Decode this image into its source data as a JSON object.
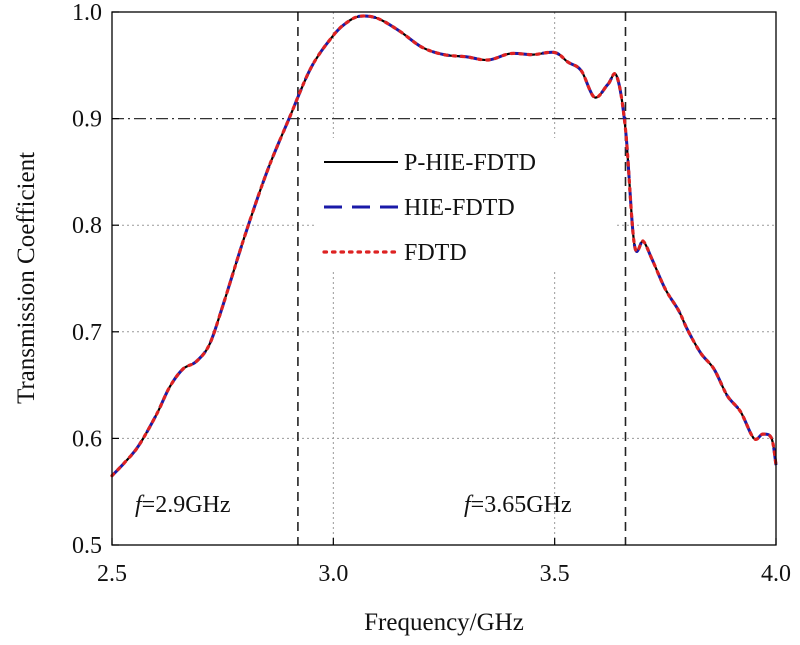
{
  "chart_data": {
    "type": "line",
    "xlabel": "Frequency/GHz",
    "ylabel": "Transmission Coefficient",
    "xlim": [
      2.5,
      4.0
    ],
    "ylim": [
      0.5,
      1.0
    ],
    "xticks": [
      2.5,
      3.0,
      3.5,
      4.0
    ],
    "xtick_labels": [
      "2.5",
      "3.0",
      "3.5",
      "4.0"
    ],
    "yticks": [
      0.5,
      0.6,
      0.7,
      0.8,
      0.9,
      1.0
    ],
    "ytick_labels": [
      "0.5",
      "0.6",
      "0.7",
      "0.8",
      "0.9",
      "1.0"
    ],
    "grid": true,
    "reference_lines": {
      "horizontal": [
        0.9
      ],
      "vertical": [
        2.92,
        3.66
      ]
    },
    "annotations": [
      {
        "italic": "f",
        "text": "=2.9GHz",
        "x": 2.8
      },
      {
        "italic": "f",
        "text": "=3.65GHz",
        "x": 3.51
      }
    ],
    "legend_position": "center-left",
    "series": [
      {
        "name": "P-HIE-FDTD",
        "color": "#000000",
        "style": "solid"
      },
      {
        "name": "HIE-FDTD",
        "color": "#1a1aa8",
        "style": "dashed"
      },
      {
        "name": "FDTD",
        "color": "#dd2222",
        "style": "dotted"
      }
    ],
    "x": [
      2.5,
      2.53,
      2.56,
      2.6,
      2.63,
      2.66,
      2.69,
      2.72,
      2.75,
      2.8,
      2.85,
      2.9,
      2.95,
      3.0,
      3.03,
      3.06,
      3.1,
      3.15,
      3.2,
      3.25,
      3.3,
      3.35,
      3.4,
      3.45,
      3.5,
      3.53,
      3.56,
      3.59,
      3.62,
      3.64,
      3.66,
      3.68,
      3.7,
      3.72,
      3.75,
      3.78,
      3.8,
      3.83,
      3.86,
      3.89,
      3.92,
      3.95,
      3.97,
      3.99,
      4.0
    ],
    "values": [
      0.565,
      0.578,
      0.593,
      0.622,
      0.648,
      0.665,
      0.672,
      0.688,
      0.724,
      0.79,
      0.85,
      0.9,
      0.948,
      0.978,
      0.99,
      0.996,
      0.994,
      0.982,
      0.967,
      0.96,
      0.958,
      0.955,
      0.961,
      0.96,
      0.962,
      0.953,
      0.945,
      0.92,
      0.932,
      0.94,
      0.89,
      0.782,
      0.785,
      0.768,
      0.74,
      0.72,
      0.702,
      0.68,
      0.665,
      0.64,
      0.625,
      0.6,
      0.604,
      0.6,
      0.575
    ]
  }
}
